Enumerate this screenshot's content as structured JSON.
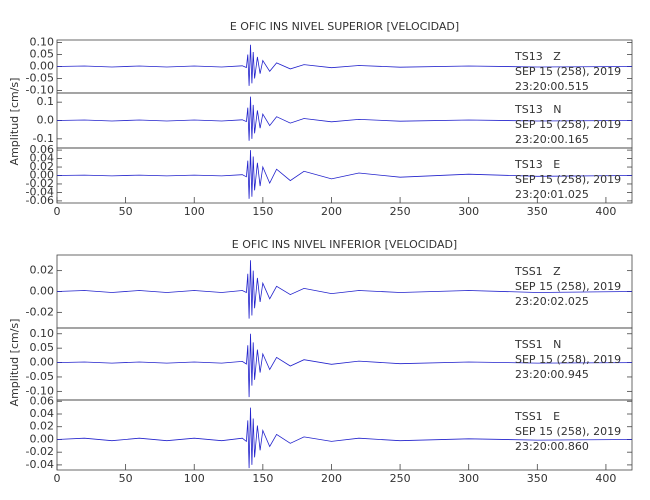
{
  "chart_data": [
    {
      "type": "line",
      "title": "E OFIC INS NIVEL SUPERIOR [VELOCIDAD]",
      "ylabel": "Amplitud [cm/s]",
      "color": "#2222cc",
      "xlim": [
        0,
        419
      ],
      "xticks": [
        0,
        50,
        100,
        150,
        200,
        250,
        300,
        350,
        400
      ],
      "x": [
        0,
        20,
        40,
        60,
        80,
        100,
        120,
        135,
        138,
        139,
        140,
        141,
        142,
        143,
        144,
        146,
        148,
        150,
        155,
        160,
        170,
        180,
        200,
        220,
        250,
        300,
        350,
        419
      ],
      "panels": [
        {
          "station": "TS13   Z",
          "date": "SEP 15 (258), 2019",
          "time": "23:20:00.515",
          "ylim": [
            -0.11,
            0.11
          ],
          "yticks": [
            {
              "value": 0.1,
              "label": "0.10"
            },
            0.05,
            {
              "value": 0,
              "label": "0.00"
            },
            {
              "value": -0.05,
              "label": "-0.05"
            },
            {
              "value": -0.1,
              "label": "-0.10"
            }
          ],
          "values": [
            0,
            0.002,
            -0.002,
            0.002,
            -0.002,
            0.002,
            -0.002,
            0.003,
            -0.004,
            0.05,
            -0.08,
            0.09,
            -0.07,
            0.06,
            -0.05,
            0.04,
            -0.03,
            0.025,
            -0.02,
            0.015,
            -0.01,
            0.008,
            -0.005,
            0.004,
            -0.003,
            0.002,
            -0.002,
            0
          ]
        },
        {
          "station": "TS13   N",
          "date": "SEP 15 (258), 2019",
          "time": "23:20:00.165",
          "ylim": [
            -0.15,
            0.15
          ],
          "yticks": [
            0.1,
            {
              "value": 0,
              "label": "0.0"
            },
            -0.1
          ],
          "values": [
            0,
            0.003,
            -0.003,
            0.003,
            -0.003,
            0.003,
            -0.003,
            0.004,
            -0.006,
            0.07,
            -0.11,
            0.13,
            -0.1,
            0.085,
            -0.07,
            0.055,
            -0.042,
            0.035,
            -0.028,
            0.021,
            -0.014,
            0.011,
            -0.007,
            0.006,
            -0.004,
            0.003,
            -0.003,
            0
          ]
        },
        {
          "station": "TS13   E",
          "date": "SEP 15 (258), 2019",
          "time": "23:20:01.025",
          "ylim": [
            -0.065,
            0.065
          ],
          "yticks": [
            0.06,
            0.04,
            0.02,
            {
              "value": 0,
              "label": "0.00"
            },
            -0.02,
            -0.04,
            -0.06
          ],
          "values": [
            0,
            0.001,
            -0.001,
            0.001,
            -0.001,
            0.001,
            -0.001,
            0.002,
            -0.003,
            0.035,
            -0.055,
            0.06,
            -0.05,
            0.045,
            -0.035,
            0.03,
            -0.025,
            0.02,
            -0.018,
            0.015,
            -0.012,
            0.01,
            -0.008,
            0.006,
            -0.004,
            0.003,
            -0.002,
            0
          ]
        }
      ]
    },
    {
      "type": "line",
      "title": "E OFIC INS NIVEL INFERIOR [VELOCIDAD]",
      "ylabel": "Amplitud [cm/s]",
      "color": "#2222cc",
      "xlim": [
        0,
        419
      ],
      "xticks": [
        0,
        50,
        100,
        150,
        200,
        250,
        300,
        350,
        400
      ],
      "x": [
        0,
        20,
        40,
        60,
        80,
        100,
        120,
        135,
        138,
        139,
        140,
        141,
        142,
        143,
        144,
        146,
        148,
        150,
        155,
        160,
        170,
        180,
        200,
        220,
        250,
        300,
        350,
        419
      ],
      "panels": [
        {
          "station": "TSS1   Z",
          "date": "SEP 15 (258), 2019",
          "time": "23:20:02.025",
          "ylim": [
            -0.035,
            0.035
          ],
          "yticks": [
            0.02,
            {
              "value": 0,
              "label": "0.00"
            },
            -0.02
          ],
          "values": [
            0,
            0.001,
            -0.001,
            0.001,
            -0.001,
            0.001,
            -0.001,
            0.001,
            -0.001,
            0.017,
            -0.026,
            0.03,
            -0.023,
            0.02,
            -0.016,
            0.013,
            -0.01,
            0.008,
            -0.007,
            0.005,
            -0.003,
            0.003,
            -0.002,
            0.001,
            -0.001,
            0.001,
            -0.001,
            0
          ]
        },
        {
          "station": "TSS1   N",
          "date": "SEP 15 (258), 2019",
          "time": "23:20:00.945",
          "ylim": [
            -0.13,
            0.12
          ],
          "yticks": [
            {
              "value": 0.1,
              "label": "0.10"
            },
            0.05,
            {
              "value": 0,
              "label": "0.00"
            },
            {
              "value": -0.05,
              "label": "-0.05"
            },
            {
              "value": -0.1,
              "label": "-0.10"
            }
          ],
          "values": [
            0,
            0.002,
            -0.002,
            0.002,
            -0.002,
            0.002,
            -0.002,
            0.004,
            -0.005,
            0.06,
            -0.12,
            0.1,
            -0.08,
            0.07,
            -0.06,
            0.045,
            -0.035,
            0.03,
            -0.024,
            0.018,
            -0.012,
            0.01,
            -0.006,
            0.005,
            -0.004,
            0.002,
            -0.002,
            0
          ]
        },
        {
          "station": "TSS1   E",
          "date": "SEP 15 (258), 2019",
          "time": "23:20:00.860",
          "ylim": [
            -0.048,
            0.062
          ],
          "yticks": [
            0.06,
            0.04,
            0.02,
            {
              "value": 0,
              "label": "0.00"
            },
            -0.02,
            -0.04
          ],
          "values": [
            0,
            0.002,
            -0.002,
            0.002,
            -0.002,
            0.002,
            -0.002,
            0.002,
            -0.003,
            0.03,
            -0.045,
            0.05,
            -0.04,
            0.033,
            -0.028,
            0.022,
            -0.017,
            0.014,
            -0.011,
            0.008,
            -0.006,
            0.004,
            -0.003,
            0.002,
            -0.002,
            0.001,
            -0.001,
            0
          ]
        }
      ]
    }
  ]
}
